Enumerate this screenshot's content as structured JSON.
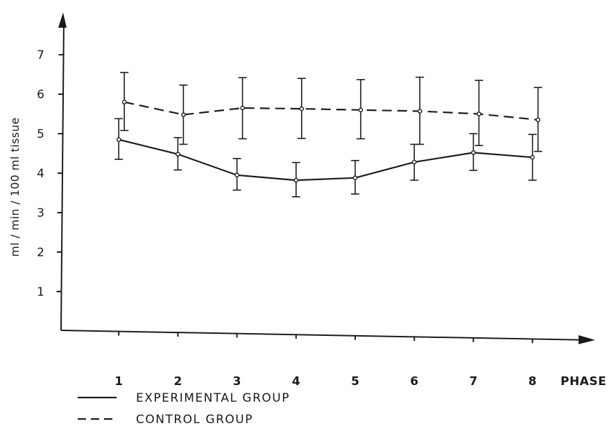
{
  "chart_data": {
    "type": "line",
    "title": "",
    "xlabel": "PHASE",
    "ylabel": "ml / min / 100 ml tissue",
    "x": [
      1,
      2,
      3,
      4,
      5,
      6,
      7,
      8
    ],
    "x_tick_labels": [
      "1",
      "2",
      "3",
      "4",
      "5",
      "6",
      "7",
      "8"
    ],
    "y_tick_labels": [
      "1",
      "2",
      "3",
      "4",
      "5",
      "6",
      "7"
    ],
    "xlim": [
      0,
      9
    ],
    "ylim": [
      0,
      8
    ],
    "grid": false,
    "legend_placement": "bottom-left",
    "series": [
      {
        "name": "EXPERIMENTAL GROUP",
        "line_style": "solid",
        "values": [
          4.85,
          4.48,
          3.95,
          3.82,
          3.88,
          4.28,
          4.52,
          4.4
        ],
        "error_low": [
          4.35,
          4.08,
          3.57,
          3.4,
          3.47,
          3.82,
          4.07,
          3.82
        ],
        "error_high": [
          5.38,
          4.9,
          4.37,
          4.27,
          4.32,
          4.73,
          5.0,
          4.98
        ]
      },
      {
        "name": "CONTROL GROUP",
        "line_style": "dashed",
        "values": [
          5.8,
          5.48,
          5.65,
          5.63,
          5.6,
          5.57,
          5.5,
          5.35
        ],
        "error_low": [
          5.08,
          4.73,
          4.87,
          4.88,
          4.87,
          4.73,
          4.7,
          4.55
        ],
        "error_high": [
          6.55,
          6.23,
          6.42,
          6.4,
          6.37,
          6.43,
          6.35,
          6.17
        ]
      }
    ],
    "colors": {
      "line": "#1a1a1a",
      "background": "#ffffff"
    }
  }
}
